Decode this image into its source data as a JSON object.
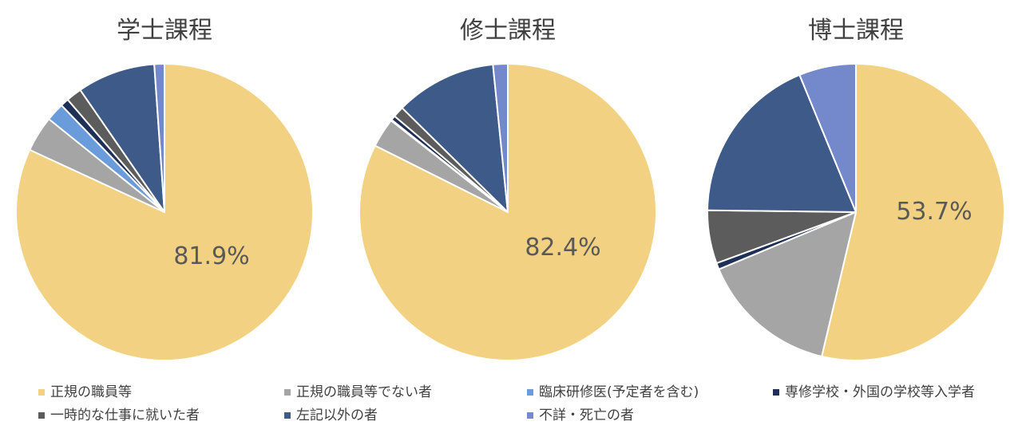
{
  "chart_data": [
    {
      "type": "pie",
      "title": "学士課程",
      "center_label": "81.9%",
      "slices": [
        {
          "category": "正規の職員等",
          "value": 81.9
        },
        {
          "category": "正規の職員等でない者",
          "value": 3.9
        },
        {
          "category": "臨床研修医(予定者を含む)",
          "value": 2.0
        },
        {
          "category": "専修学校・外国の学校等入学者",
          "value": 0.9
        },
        {
          "category": "一時的な仕事に就いた者",
          "value": 1.7
        },
        {
          "category": "左記以外の者",
          "value": 8.5
        },
        {
          "category": "不詳・死亡の者",
          "value": 1.1
        }
      ]
    },
    {
      "type": "pie",
      "title": "修士課程",
      "center_label": "82.4%",
      "slices": [
        {
          "category": "正規の職員等",
          "value": 82.4
        },
        {
          "category": "正規の職員等でない者",
          "value": 3.2
        },
        {
          "category": "臨床研修医(予定者を含む)",
          "value": 0.1
        },
        {
          "category": "専修学校・外国の学校等入学者",
          "value": 0.5
        },
        {
          "category": "一時的な仕事に就いた者",
          "value": 1.2
        },
        {
          "category": "左記以外の者",
          "value": 11.0
        },
        {
          "category": "不詳・死亡の者",
          "value": 1.6
        }
      ]
    },
    {
      "type": "pie",
      "title": "博士課程",
      "center_label": "53.7%",
      "slices": [
        {
          "category": "正規の職員等",
          "value": 53.7
        },
        {
          "category": "正規の職員等でない者",
          "value": 15.0
        },
        {
          "category": "臨床研修医(予定者を含む)",
          "value": 0.0
        },
        {
          "category": "専修学校・外国の学校等入学者",
          "value": 0.7
        },
        {
          "category": "一時的な仕事に就いた者",
          "value": 5.8
        },
        {
          "category": "左記以外の者",
          "value": 18.6
        },
        {
          "category": "不詳・死亡の者",
          "value": 6.2
        }
      ]
    }
  ],
  "legend": [
    {
      "label": "正規の職員等",
      "color": "#F2D282"
    },
    {
      "label": "正規の職員等でない者",
      "color": "#A5A5A5"
    },
    {
      "label": "臨床研修医(予定者を含む)",
      "color": "#6A9BDB"
    },
    {
      "label": "専修学校・外国の学校等入学者",
      "color": "#1F3056"
    },
    {
      "label": "一時的な仕事に就いた者",
      "color": "#5C5C5C"
    },
    {
      "label": "左記以外の者",
      "color": "#3D5A88"
    },
    {
      "label": "不詳・死亡の者",
      "color": "#7489CB"
    }
  ]
}
